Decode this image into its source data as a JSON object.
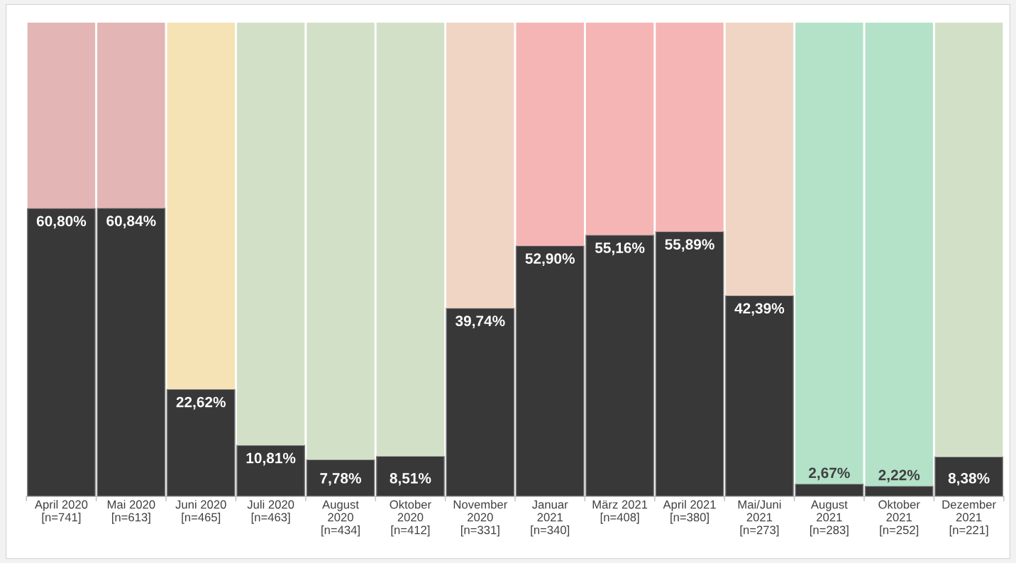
{
  "chart_data": {
    "type": "bar",
    "stacked": true,
    "categories": [
      "April 2020\n[n=741]",
      "Mai 2020\n[n=613]",
      "Juni 2020\n[n=465]",
      "Juli 2020\n[n=463]",
      "August\n2020\n[n=434]",
      "Oktober\n2020\n[n=412]",
      "November\n2020\n[n=331]",
      "Januar\n2021\n[n=340]",
      "März 2021\n[n=408]",
      "April 2021\n[n=380]",
      "Mai/Juni\n2021\n[n=273]",
      "August\n2021\n[n=283]",
      "Oktober\n2021\n[n=252]",
      "Dezember\n2021\n[n=221]"
    ],
    "series": [
      {
        "color": "#383838",
        "values": [
          60.8,
          60.84,
          22.62,
          10.81,
          7.78,
          8.51,
          39.74,
          52.9,
          55.16,
          55.89,
          42.39,
          2.67,
          2.22,
          8.38
        ],
        "value_labels": [
          "60,80%",
          "60,84%",
          "22,62%",
          "10,81%",
          "7,78%",
          "8,51%",
          "39,74%",
          "52,90%",
          "55,16%",
          "55,89%",
          "42,39%",
          "2,67%",
          "2,22%",
          "8,38%"
        ]
      },
      {
        "colors": [
          "#e3b5b5",
          "#e3b5b5",
          "#f5e3b5",
          "#d3e0c8",
          "#d3e0c8",
          "#d3e0c8",
          "#f0d5c5",
          "#f5b5b5",
          "#f5b5b5",
          "#f5b5b5",
          "#f0d5c5",
          "#b3e2c8",
          "#b3e2c8",
          "#d3e0c8"
        ],
        "values": [
          39.2,
          39.16,
          77.38,
          89.19,
          92.22,
          91.49,
          60.26,
          47.1,
          44.84,
          44.11,
          57.61,
          97.33,
          97.78,
          91.62
        ]
      }
    ],
    "grid": false,
    "legend": false
  }
}
